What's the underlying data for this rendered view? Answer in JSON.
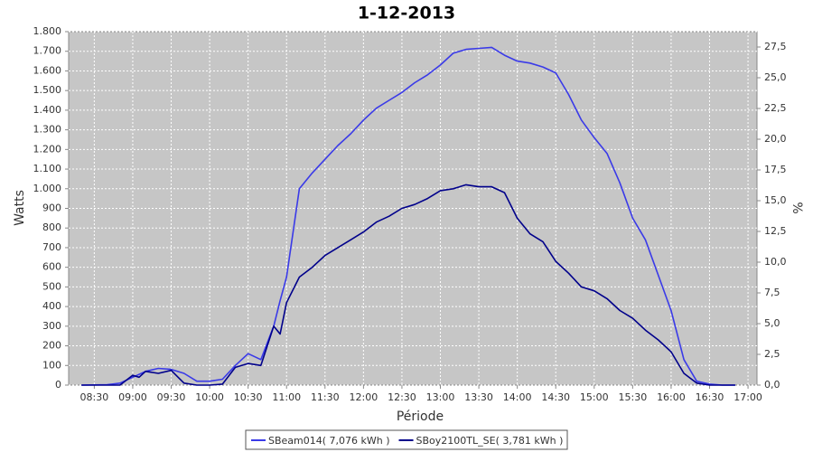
{
  "chart_data": {
    "type": "line",
    "title": "1-12-2013",
    "x_label": "Période",
    "y_label": "Watts",
    "y2_label": "%",
    "x": [
      500,
      520,
      530,
      540,
      545,
      550,
      560,
      570,
      580,
      590,
      600,
      610,
      620,
      630,
      640,
      650,
      655,
      660,
      670,
      680,
      690,
      700,
      710,
      720,
      730,
      740,
      750,
      760,
      770,
      780,
      790,
      800,
      810,
      820,
      830,
      840,
      850,
      860,
      870,
      880,
      890,
      900,
      910,
      920,
      930,
      940,
      950,
      960,
      970,
      980,
      990,
      1000,
      1010
    ],
    "xlim": [
      490,
      1027
    ],
    "xticks": [
      {
        "value": 510,
        "label": "08:30"
      },
      {
        "value": 540,
        "label": "09:00"
      },
      {
        "value": 570,
        "label": "09:30"
      },
      {
        "value": 600,
        "label": "10:00"
      },
      {
        "value": 630,
        "label": "10:30"
      },
      {
        "value": 660,
        "label": "11:00"
      },
      {
        "value": 690,
        "label": "11:30"
      },
      {
        "value": 720,
        "label": "12:00"
      },
      {
        "value": 750,
        "label": "12:30"
      },
      {
        "value": 780,
        "label": "13:00"
      },
      {
        "value": 810,
        "label": "13:30"
      },
      {
        "value": 840,
        "label": "14:00"
      },
      {
        "value": 870,
        "label": "14:30"
      },
      {
        "value": 900,
        "label": "15:00"
      },
      {
        "value": 930,
        "label": "15:30"
      },
      {
        "value": 960,
        "label": "16:00"
      },
      {
        "value": 990,
        "label": "16:30"
      },
      {
        "value": 1020,
        "label": "17:00"
      }
    ],
    "ylim": [
      0,
      1800
    ],
    "yticks": [
      0,
      100,
      200,
      300,
      400,
      500,
      600,
      700,
      800,
      900,
      {
        "value": 1000,
        "label": "1.000"
      },
      {
        "value": 1100,
        "label": "1.100"
      },
      {
        "value": 1200,
        "label": "1.200"
      },
      {
        "value": 1300,
        "label": "1.300"
      },
      {
        "value": 1400,
        "label": "1.400"
      },
      {
        "value": 1500,
        "label": "1.500"
      },
      {
        "value": 1600,
        "label": "1.600"
      },
      {
        "value": 1700,
        "label": "1.700"
      },
      {
        "value": 1800,
        "label": "1.800"
      }
    ],
    "y2lim": [
      0,
      28.75
    ],
    "y2ticks": [
      {
        "value": 0,
        "label": "0,0"
      },
      {
        "value": 2.5,
        "label": "2,5"
      },
      {
        "value": 5,
        "label": "5,0"
      },
      {
        "value": 7.5,
        "label": "7,5"
      },
      {
        "value": 10,
        "label": "10,0"
      },
      {
        "value": 12.5,
        "label": "12,5"
      },
      {
        "value": 15,
        "label": "15,0"
      },
      {
        "value": 17.5,
        "label": "17,5"
      },
      {
        "value": 20,
        "label": "20,0"
      },
      {
        "value": 22.5,
        "label": "22,5"
      },
      {
        "value": 25,
        "label": "25,0"
      },
      {
        "value": 27.5,
        "label": "27,5"
      }
    ],
    "grid": true,
    "legend": "bottom",
    "series": [
      {
        "name": "SBeam014( 7,076 kWh )",
        "color": "#3a3ae8",
        "values": [
          0,
          2,
          10,
          40,
          55,
          70,
          85,
          80,
          60,
          20,
          20,
          30,
          100,
          160,
          130,
          300,
          430,
          550,
          1000,
          1080,
          1150,
          1220,
          1280,
          1350,
          1410,
          1450,
          1490,
          1540,
          1580,
          1630,
          1690,
          1710,
          1715,
          1720,
          1680,
          1650,
          1640,
          1620,
          1590,
          1480,
          1350,
          1260,
          1180,
          1030,
          850,
          740,
          560,
          380,
          130,
          20,
          5,
          0,
          0
        ]
      },
      {
        "name": "SBoy2100TL_SE( 3,781 kWh )",
        "color": "#00008b",
        "values": [
          0,
          0,
          0,
          50,
          40,
          70,
          60,
          75,
          10,
          0,
          0,
          5,
          90,
          110,
          100,
          300,
          260,
          420,
          550,
          600,
          660,
          700,
          740,
          780,
          830,
          860,
          900,
          920,
          950,
          990,
          1000,
          1020,
          1010,
          1010,
          980,
          850,
          770,
          730,
          630,
          570,
          500,
          480,
          440,
          380,
          340,
          280,
          230,
          170,
          60,
          10,
          0,
          0,
          0
        ]
      }
    ]
  }
}
